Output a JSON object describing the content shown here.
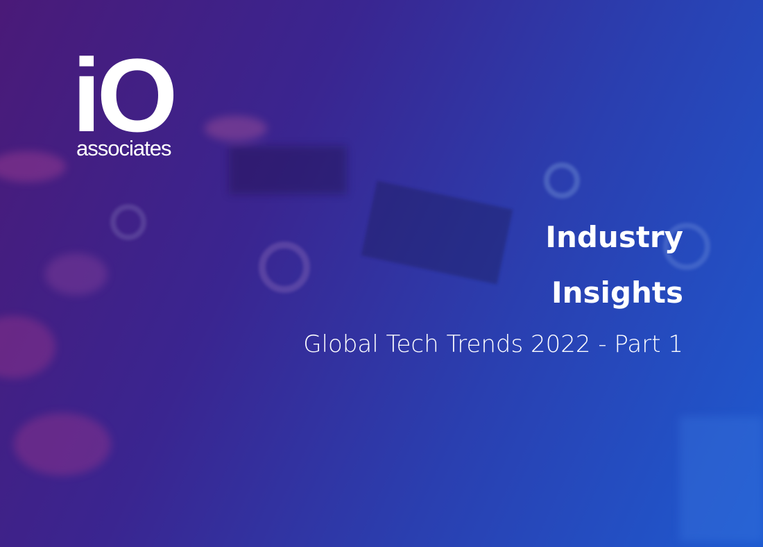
{
  "logo": {
    "mark": "iO",
    "name": "associates"
  },
  "title_lines": [
    "Industry",
    "Insights"
  ],
  "subtitle": "Global Tech Trends 2022 - Part 1"
}
